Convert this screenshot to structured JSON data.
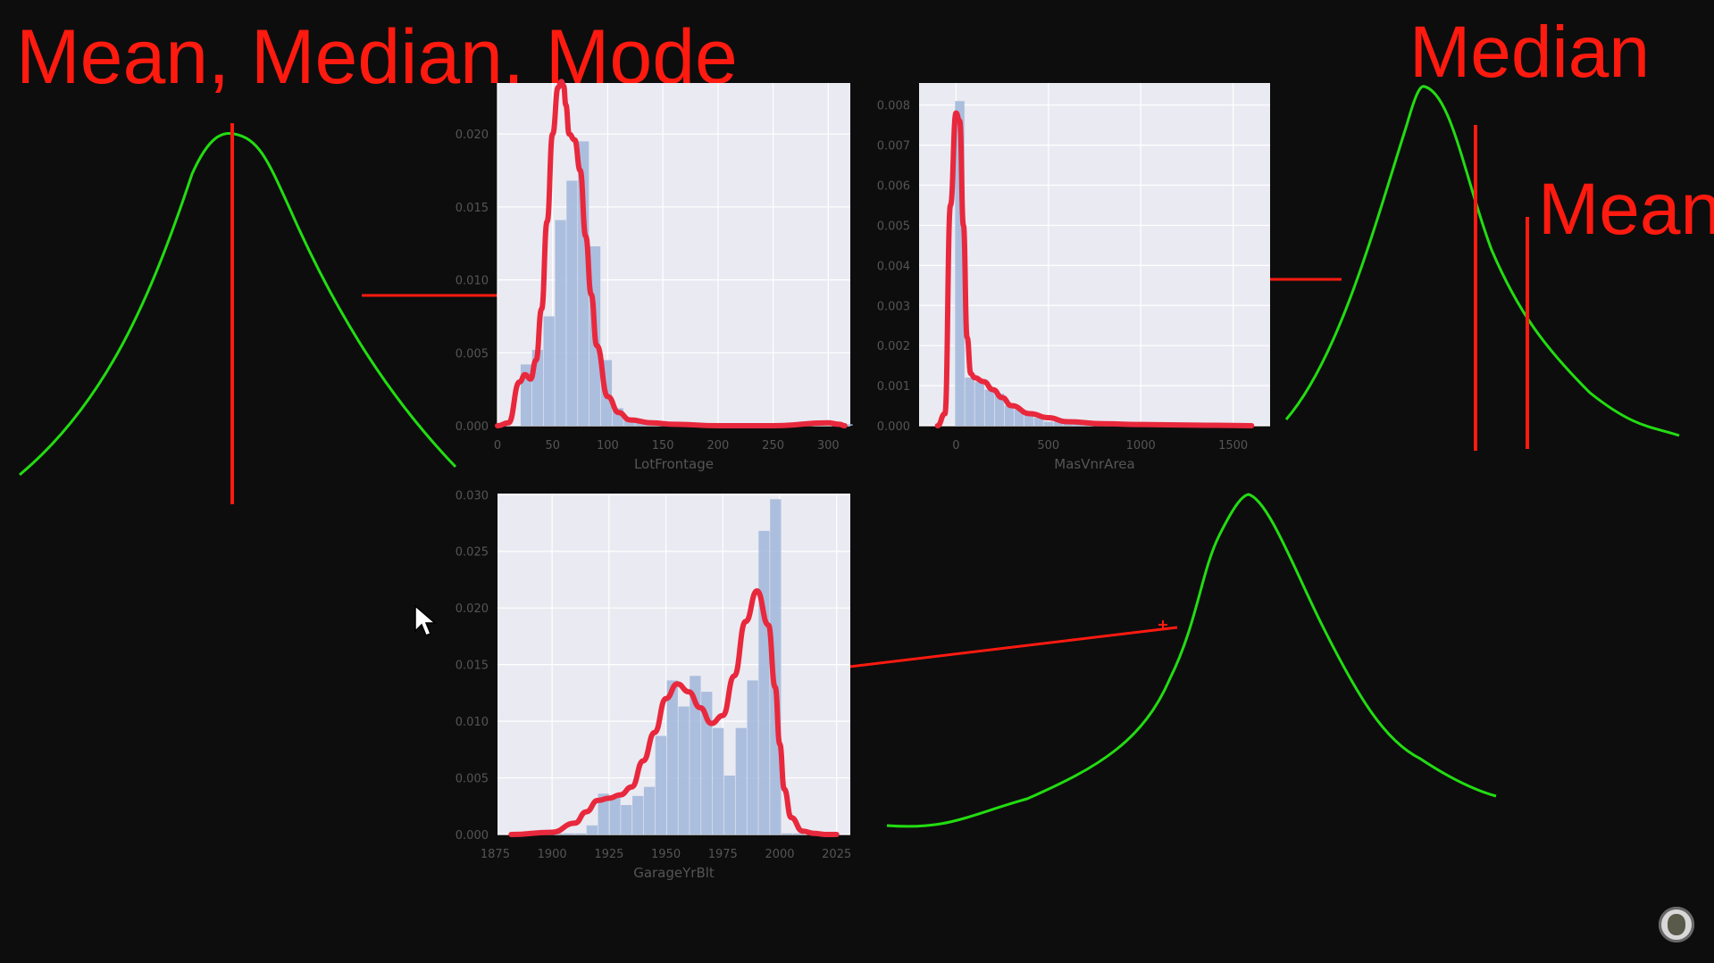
{
  "annotations": {
    "title": "Mean, Median, Mode",
    "median_label": "Median",
    "mean_label": "Mean"
  },
  "colors": {
    "background": "#0d0d0d",
    "ink_red": "#ff1a10",
    "ink_green": "#22dd11",
    "plot_bg": "#eaeaf2",
    "hist_bar": "#a4b9dc",
    "kde_line": "#e8283c"
  },
  "icons": {
    "cursor": "mouse-pointer-icon",
    "logo": "channel-logo-icon"
  },
  "chart_data": [
    {
      "type": "bar",
      "xlabel": "LotFrontage",
      "ylabel": "",
      "xlim": [
        0,
        320
      ],
      "ylim": [
        0,
        0.0235
      ],
      "xticks": [
        "0",
        "50",
        "100",
        "150",
        "200",
        "250",
        "300"
      ],
      "yticks": [
        "0.000",
        "0.005",
        "0.010",
        "0.015",
        "0.020"
      ],
      "bin_width": 10.4,
      "bin_starts": [
        21,
        31.4,
        41.8,
        52.2,
        62.6,
        73,
        83.4,
        93.8,
        104.2,
        114.6,
        125,
        135.4,
        145.8,
        156.2,
        166.6,
        177,
        187.4,
        197.8,
        208.2,
        218.6,
        229,
        239.4,
        249.8,
        260.2,
        270.6,
        281,
        291.4,
        301.8,
        312.2
      ],
      "values": [
        0.0042,
        0.0052,
        0.0075,
        0.0141,
        0.0168,
        0.0195,
        0.0123,
        0.0045,
        0.0012,
        0.0005,
        0.0003,
        0.0002,
        0.0001,
        0.0001,
        0.0001,
        0.0001,
        0,
        0,
        0,
        0,
        0,
        0,
        0,
        0,
        0,
        0,
        0,
        0,
        0.0001
      ],
      "kde": {
        "x": [
          0,
          10,
          20,
          25,
          30,
          35,
          40,
          45,
          50,
          55,
          58,
          60,
          62,
          65,
          70,
          75,
          80,
          85,
          90,
          100,
          110,
          120,
          140,
          160,
          200,
          250,
          300,
          310,
          315
        ],
        "y": [
          0,
          0.0002,
          0.003,
          0.0035,
          0.0032,
          0.0045,
          0.008,
          0.014,
          0.02,
          0.0232,
          0.0236,
          0.0233,
          0.022,
          0.02,
          0.0196,
          0.0175,
          0.013,
          0.009,
          0.0055,
          0.002,
          0.0009,
          0.0004,
          0.0002,
          0.0001,
          0,
          0,
          0.0002,
          0.0001,
          0
        ]
      }
    },
    {
      "type": "bar",
      "xlabel": "MasVnrArea",
      "ylabel": "",
      "xlim": [
        -200,
        1700
      ],
      "ylim": [
        0,
        0.00855
      ],
      "xticks": [
        "0",
        "500",
        "1000",
        "1500"
      ],
      "yticks": [
        "0.000",
        "0.001",
        "0.002",
        "0.003",
        "0.004",
        "0.005",
        "0.006",
        "0.007",
        "0.008"
      ],
      "bin_width": 53.5,
      "bin_starts": [
        -5,
        48.5,
        102,
        155.5,
        209,
        262.5,
        316,
        369.5,
        423,
        476.5,
        530,
        583.5,
        637,
        690.5,
        744,
        797.5,
        851,
        904.5,
        958,
        1011.5,
        1065,
        1118.5,
        1172,
        1225.5,
        1279,
        1332.5,
        1386,
        1439.5,
        1493,
        1546.5
      ],
      "values": [
        0.0081,
        0.0012,
        0.0011,
        0.0009,
        0.0008,
        0.0005,
        0.0004,
        0.0003,
        0.0002,
        0.0001,
        0.0001,
        0.0001,
        0.0001,
        0.0001,
        0.0001,
        0,
        0,
        0,
        0,
        0,
        0,
        0,
        0,
        0,
        0,
        0,
        0,
        0,
        0,
        0
      ],
      "kde": {
        "x": [
          -100,
          -60,
          -30,
          0,
          20,
          40,
          60,
          80,
          100,
          150,
          200,
          250,
          300,
          400,
          500,
          600,
          800,
          1000,
          1200,
          1400,
          1600
        ],
        "y": [
          0,
          0.0003,
          0.0055,
          0.0078,
          0.0076,
          0.005,
          0.0022,
          0.0013,
          0.0012,
          0.0011,
          0.0009,
          0.0007,
          0.0005,
          0.0003,
          0.0002,
          0.0001,
          5e-05,
          3e-05,
          2e-05,
          1e-05,
          0
        ]
      }
    },
    {
      "type": "bar",
      "xlabel": "GarageYrBlt",
      "ylabel": "",
      "xlim": [
        1876,
        2031
      ],
      "ylim": [
        0,
        0.0301
      ],
      "xticks": [
        "1875",
        "1900",
        "1925",
        "1950",
        "1975",
        "2000",
        "2025"
      ],
      "yticks": [
        "0.000",
        "0.005",
        "0.010",
        "0.015",
        "0.020",
        "0.025",
        "0.030"
      ],
      "bin_width": 5.04,
      "bin_starts": [
        1900,
        1905.04,
        1910.08,
        1915.12,
        1920.16,
        1925.2,
        1930.24,
        1935.28,
        1940.32,
        1945.36,
        1950.4,
        1955.44,
        1960.48,
        1965.52,
        1970.56,
        1975.6,
        1980.64,
        1985.68,
        1990.72,
        1995.76,
        2000.8,
        2005.84
      ],
      "values": [
        0.0001,
        0.0001,
        0.0001,
        0.0008,
        0.0036,
        0.0034,
        0.0026,
        0.0034,
        0.0042,
        0.0087,
        0.0136,
        0.0113,
        0.014,
        0.0126,
        0.0094,
        0.0052,
        0.0094,
        0.0136,
        0.0268,
        0.0296,
        0.0001,
        0.0001
      ],
      "kde": {
        "x": [
          1882,
          1900,
          1910,
          1915,
          1920,
          1925,
          1930,
          1935,
          1940,
          1945,
          1950,
          1955,
          1960,
          1965,
          1970,
          1975,
          1980,
          1985,
          1990,
          1995,
          1998,
          2000,
          2002,
          2005,
          2010,
          2015,
          2020,
          2025
        ],
        "y": [
          0,
          0.0002,
          0.001,
          0.002,
          0.003,
          0.0032,
          0.0035,
          0.0042,
          0.0065,
          0.009,
          0.012,
          0.0133,
          0.0126,
          0.0112,
          0.0098,
          0.0105,
          0.014,
          0.0188,
          0.0215,
          0.0185,
          0.013,
          0.008,
          0.004,
          0.0015,
          0.0003,
          0.0001,
          0,
          0
        ]
      }
    }
  ]
}
